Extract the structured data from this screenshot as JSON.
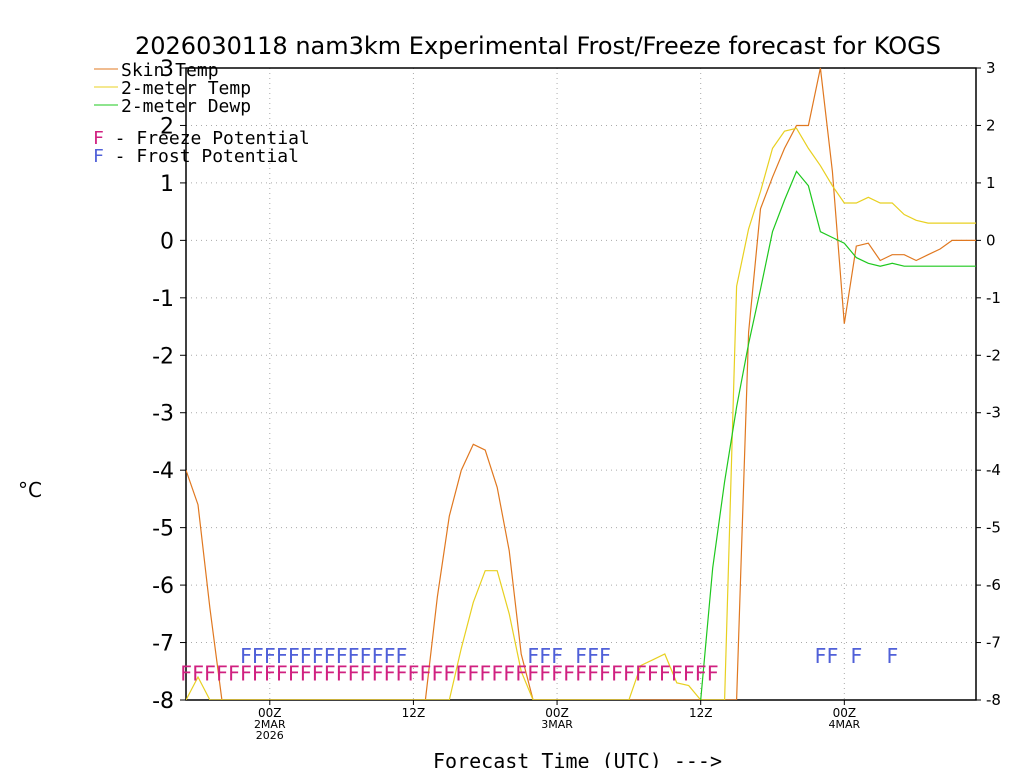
{
  "chart_data": {
    "type": "line",
    "title": "2026030118 nam3km Experimental Frost/Freeze forecast for KOGS",
    "xlabel": "Forecast Time (UTC) --->",
    "ylabel": "°C",
    "ylim": [
      -8,
      3
    ],
    "xlim": [
      -7,
      59
    ],
    "grid": true,
    "y_ticks": [
      "-8",
      "-7",
      "-6",
      "-5",
      "-4",
      "-3",
      "-2",
      "-1",
      "0",
      "1",
      "2",
      "3"
    ],
    "x_ticks": [
      {
        "at": 0,
        "lines": [
          "00Z",
          "2MAR",
          "2026"
        ]
      },
      {
        "at": 12,
        "lines": [
          "12Z"
        ]
      },
      {
        "at": 24,
        "lines": [
          "00Z",
          "3MAR"
        ]
      },
      {
        "at": 36,
        "lines": [
          "12Z"
        ]
      },
      {
        "at": 48,
        "lines": [
          "00Z",
          "4MAR"
        ]
      }
    ],
    "legend": [
      {
        "name": "Skin Temp",
        "color": "#e07820"
      },
      {
        "name": "2-meter Temp",
        "color": "#e8d020"
      },
      {
        "name": "2-meter Dewp",
        "color": "#1ec81e"
      }
    ],
    "potential_legend": [
      {
        "letter": "F",
        "text": " - Freeze Potential",
        "color": "#d02080"
      },
      {
        "letter": "F",
        "text": " - Frost Potential",
        "color": "#5060d8"
      }
    ],
    "series": [
      {
        "name": "Skin Temp",
        "color": "#e07820",
        "x": [
          -7,
          -6,
          -5,
          -4,
          13,
          14,
          15,
          16,
          17,
          18,
          19,
          20,
          21,
          22,
          23,
          24,
          25,
          26,
          27,
          28,
          29,
          30,
          31,
          32,
          33,
          34,
          35,
          36,
          37,
          38,
          39,
          40,
          41,
          42,
          43,
          44,
          45,
          46,
          47,
          48,
          49,
          50,
          51,
          52,
          53,
          54,
          55,
          56,
          57,
          58,
          59
        ],
        "y": [
          -4.0,
          -4.6,
          -6.4,
          -8.0,
          -8.0,
          -6.2,
          -4.8,
          -4.0,
          -3.55,
          -3.65,
          -4.3,
          -5.4,
          -7.2,
          -8.0,
          -8.0,
          -8.0,
          -8.0,
          -8.0,
          -8.0,
          -8.0,
          -8.0,
          -8.0,
          -8.0,
          -8.0,
          -8.0,
          -8.0,
          -8.0,
          -8.0,
          -8.0,
          -8.0,
          -8.0,
          -1.6,
          0.55,
          1.1,
          1.6,
          2.0,
          2.0,
          3.0,
          1.2,
          -1.45,
          -0.1,
          -0.05,
          -0.35,
          -0.25,
          -0.25,
          -0.35,
          -0.25,
          -0.15,
          0.0,
          0.0,
          0.0
        ]
      },
      {
        "name": "2-meter Temp",
        "color": "#e8d020",
        "x": [
          -7,
          -6,
          -5,
          15,
          16,
          17,
          18,
          19,
          20,
          21,
          22,
          23,
          30,
          31,
          32,
          33,
          34,
          35,
          36,
          37,
          38,
          39,
          40,
          41,
          42,
          43,
          44,
          45,
          46,
          47,
          48,
          49,
          50,
          51,
          52,
          53,
          54,
          55,
          56,
          57,
          58,
          59
        ],
        "y": [
          -8.0,
          -7.6,
          -8.0,
          -8.0,
          -7.1,
          -6.3,
          -5.75,
          -5.75,
          -6.5,
          -7.5,
          -8.0,
          -8.0,
          -8.0,
          -7.4,
          -7.3,
          -7.2,
          -7.7,
          -7.75,
          -8.0,
          -8.0,
          -8.0,
          -0.8,
          0.2,
          0.85,
          1.6,
          1.9,
          1.95,
          1.6,
          1.3,
          0.95,
          0.65,
          0.65,
          0.75,
          0.65,
          0.65,
          0.45,
          0.35,
          0.3,
          0.3,
          0.3,
          0.3,
          0.3
        ]
      },
      {
        "name": "2-meter Dewp",
        "color": "#1ec81e",
        "x": [
          36,
          37,
          38,
          39,
          40,
          41,
          42,
          43,
          44,
          45,
          46,
          47,
          48,
          49,
          50,
          51,
          52,
          53,
          54,
          55,
          56,
          57,
          58,
          59
        ],
        "y": [
          -8.0,
          -5.7,
          -4.2,
          -2.9,
          -1.8,
          -0.85,
          0.15,
          0.7,
          1.2,
          0.95,
          0.15,
          0.05,
          -0.05,
          -0.3,
          -0.4,
          -0.45,
          -0.4,
          -0.45,
          -0.45,
          -0.45,
          -0.45,
          -0.45,
          -0.45,
          -0.45
        ]
      }
    ],
    "freeze_potential": {
      "symbol": "F",
      "color": "#d02080",
      "y": -7.5,
      "hours": [
        -7,
        -6,
        -5,
        -4,
        -3,
        -2,
        -1,
        0,
        1,
        2,
        3,
        4,
        5,
        6,
        7,
        8,
        9,
        10,
        11,
        12,
        13,
        14,
        15,
        16,
        17,
        18,
        19,
        20,
        21,
        22,
        23,
        24,
        25,
        26,
        27,
        28,
        29,
        30,
        31,
        32,
        33,
        34,
        35,
        36,
        37
      ]
    },
    "frost_potential": {
      "symbol": "F",
      "color": "#5060d8",
      "y": -7.2,
      "hours": [
        -2,
        -1,
        0,
        1,
        2,
        3,
        4,
        5,
        6,
        7,
        8,
        9,
        10,
        11,
        22,
        23,
        24,
        26,
        27,
        28,
        46,
        47,
        49,
        52
      ]
    }
  }
}
